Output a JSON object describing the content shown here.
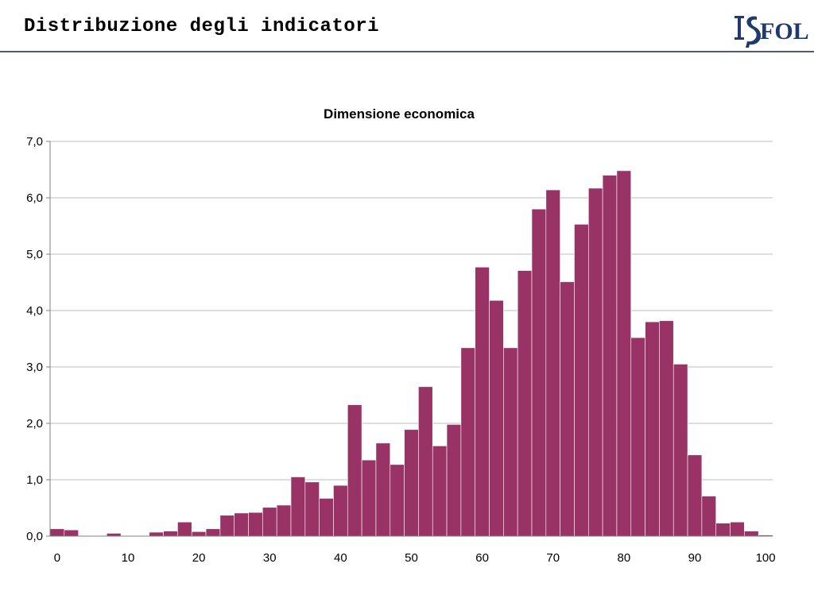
{
  "slide": {
    "title": "Distribuzione degli indicatori",
    "logo_text": "ISFOL",
    "logo_color": "#1f3a6e"
  },
  "chart_data": {
    "type": "bar",
    "title": "Dimensione economica",
    "xlabel": "",
    "ylabel": "",
    "bar_color": "#993366",
    "grid": true,
    "xlim": [
      0,
      100
    ],
    "ylim": [
      0,
      7
    ],
    "x_ticks": [
      0,
      10,
      20,
      30,
      40,
      50,
      60,
      70,
      80,
      90,
      100
    ],
    "x_tick_labels": [
      "0",
      "10",
      "20",
      "30",
      "40",
      "50",
      "60",
      "70",
      "80",
      "90",
      "100"
    ],
    "y_ticks": [
      0,
      1,
      2,
      3,
      4,
      5,
      6,
      7
    ],
    "y_tick_labels": [
      "0,0",
      "1,0",
      "2,0",
      "3,0",
      "4,0",
      "5,0",
      "6,0",
      "7,0"
    ],
    "bin_width": 2,
    "bin_starts": [
      -1,
      1,
      3,
      5,
      7,
      9,
      11,
      13,
      15,
      17,
      19,
      21,
      23,
      25,
      27,
      29,
      31,
      33,
      35,
      37,
      39,
      41,
      43,
      45,
      47,
      49,
      51,
      53,
      55,
      57,
      59,
      61,
      63,
      65,
      67,
      69,
      71,
      73,
      75,
      77,
      79,
      81,
      83,
      85,
      87,
      89,
      91,
      93,
      95,
      97,
      99
    ],
    "values": [
      0.13,
      0.11,
      0.01,
      0.0,
      0.05,
      0.01,
      0.0,
      0.07,
      0.09,
      0.25,
      0.08,
      0.13,
      0.37,
      0.41,
      0.42,
      0.51,
      0.55,
      1.05,
      0.96,
      0.67,
      0.9,
      2.33,
      1.35,
      1.65,
      1.27,
      1.89,
      2.65,
      1.6,
      1.98,
      3.34,
      4.77,
      4.18,
      3.34,
      4.71,
      5.8,
      6.14,
      4.51,
      5.53,
      6.17,
      6.4,
      6.48,
      3.52,
      3.8,
      3.82,
      3.05,
      1.44,
      0.71,
      0.23,
      0.25,
      0.09,
      0.02
    ]
  }
}
